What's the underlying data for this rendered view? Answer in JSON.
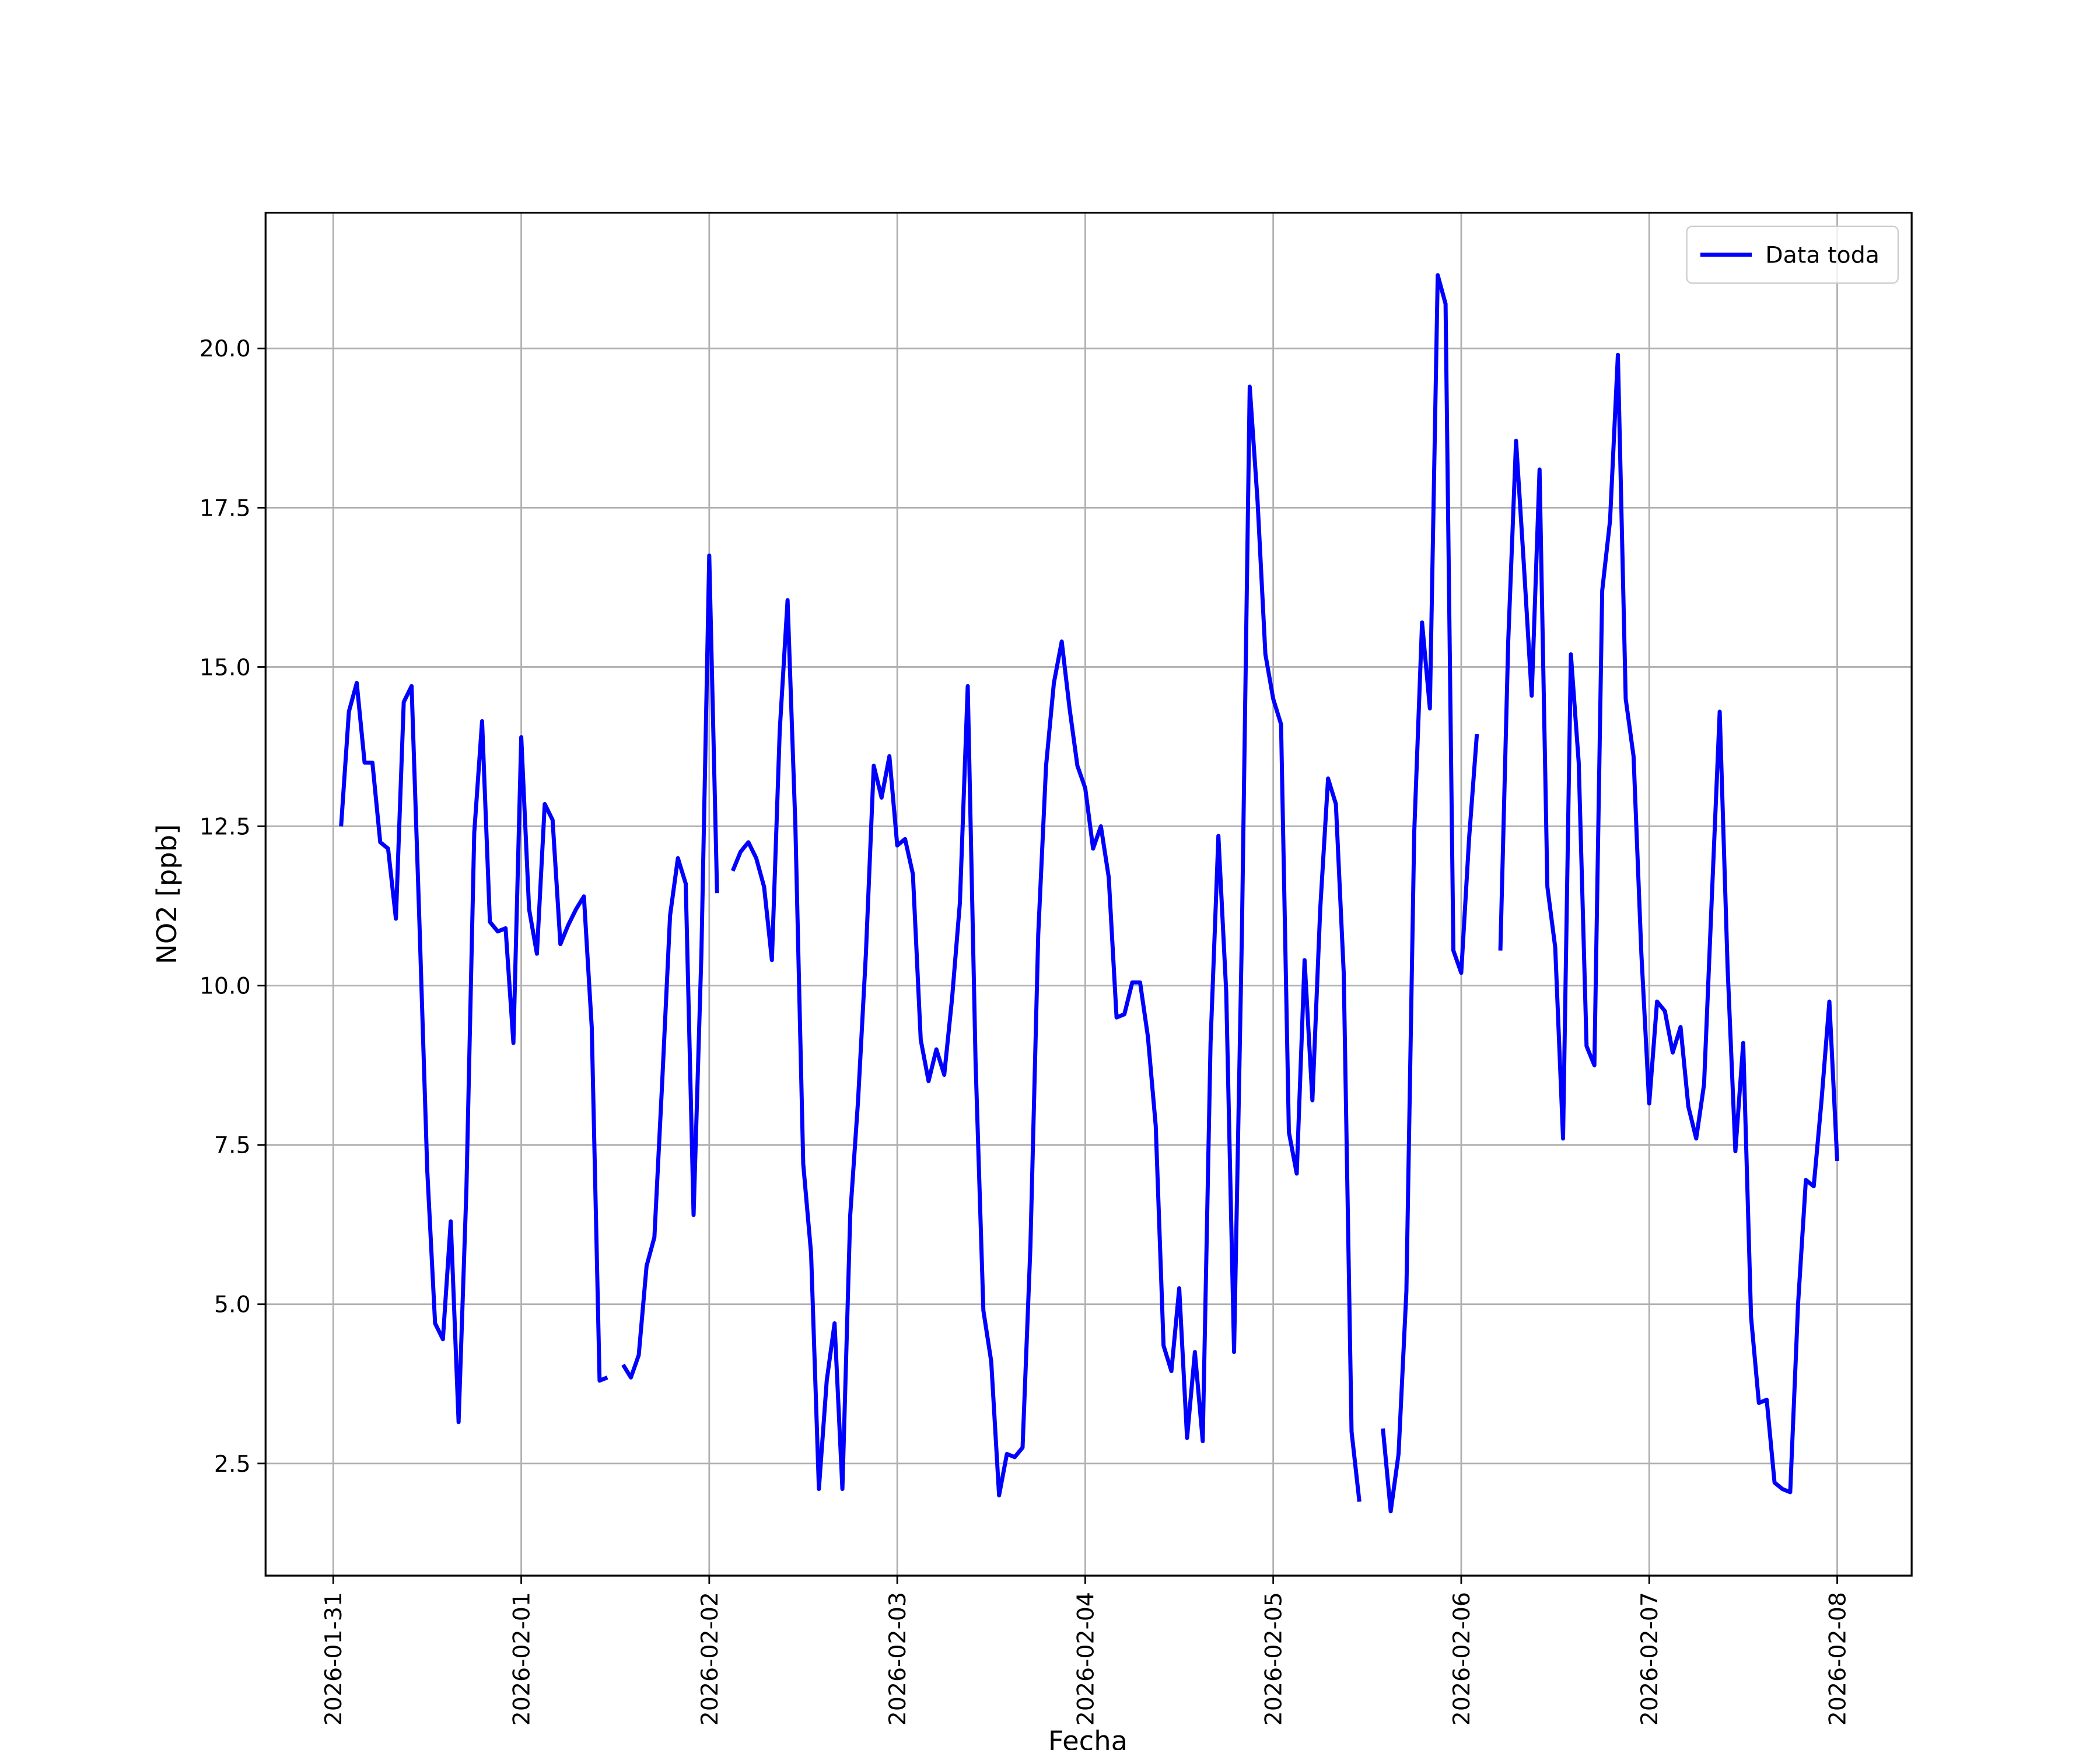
{
  "chart_data": {
    "type": "line",
    "xlabel": "Fecha",
    "ylabel": "NO2 [ppb]",
    "x": [
      0.0417,
      0.0833,
      0.125,
      0.1667,
      0.2083,
      0.25,
      0.2917,
      0.3333,
      0.375,
      0.4167,
      0.4583,
      0.5,
      0.5417,
      0.5833,
      0.625,
      0.6667,
      0.7083,
      0.75,
      0.7917,
      0.8333,
      0.875,
      0.9167,
      0.9583,
      1,
      1.0417,
      1.0833,
      1.125,
      1.1667,
      1.2083,
      1.25,
      1.2917,
      1.3333,
      1.375,
      1.4167,
      1.4583,
      1.5,
      1.5417,
      1.5833,
      1.625,
      1.6667,
      1.7083,
      1.75,
      1.7917,
      1.8333,
      1.875,
      1.9167,
      1.9583,
      2,
      2.0417,
      2.0833,
      2.125,
      2.1667,
      2.2083,
      2.25,
      2.2917,
      2.3333,
      2.375,
      2.4167,
      2.4583,
      2.5,
      2.5417,
      2.5833,
      2.625,
      2.6667,
      2.7083,
      2.75,
      2.7917,
      2.8333,
      2.875,
      2.9167,
      2.9583,
      3,
      3.0417,
      3.0833,
      3.125,
      3.1667,
      3.2083,
      3.25,
      3.2917,
      3.3333,
      3.375,
      3.4167,
      3.4583,
      3.5,
      3.5417,
      3.5833,
      3.625,
      3.6667,
      3.7083,
      3.75,
      3.7917,
      3.8333,
      3.875,
      3.9167,
      3.9583,
      4,
      4.0417,
      4.0833,
      4.125,
      4.1667,
      4.2083,
      4.25,
      4.2917,
      4.3333,
      4.375,
      4.4167,
      4.4583,
      4.5,
      4.5417,
      4.5833,
      4.625,
      4.6667,
      4.7083,
      4.75,
      4.7917,
      4.8333,
      4.875,
      4.9167,
      4.9583,
      5,
      5.0417,
      5.0833,
      5.125,
      5.1667,
      5.2083,
      5.25,
      5.2917,
      5.3333,
      5.375,
      5.4167,
      5.4583,
      5.5,
      5.5417,
      5.5833,
      5.625,
      5.6667,
      5.7083,
      5.75,
      5.7917,
      5.8333,
      5.875,
      5.9167,
      5.9583,
      6,
      6.0417,
      6.0833,
      6.125,
      6.1667,
      6.2083,
      6.25,
      6.2917,
      6.3333,
      6.375,
      6.4167,
      6.4583,
      6.5,
      6.5417,
      6.5833,
      6.625,
      6.6667,
      6.7083,
      6.75,
      6.7917,
      6.8333,
      6.875,
      6.9167,
      6.9583,
      7,
      7.0417,
      7.0833,
      7.125,
      7.1667,
      7.2083,
      7.25,
      7.2917,
      7.3333,
      7.375,
      7.4167,
      7.4583,
      7.5,
      7.5417,
      7.5833,
      7.625,
      7.6667,
      7.7083,
      7.75,
      7.7917,
      7.8333,
      7.875,
      7.9167,
      7.9583,
      8
    ],
    "series": [
      {
        "name": "Data toda",
        "color": "#0000ff",
        "values": [
          12.5,
          14.3,
          14.75,
          13.5,
          13.5,
          12.25,
          12.15,
          11.05,
          14.45,
          14.7,
          11,
          7.1,
          4.7,
          4.45,
          6.3,
          3.15,
          6.8,
          12.4,
          14.15,
          11,
          10.85,
          10.9,
          9.1,
          13.9,
          11.2,
          10.5,
          12.85,
          12.6,
          10.65,
          10.95,
          11.2,
          11.4,
          9.35,
          3.8,
          3.85,
          null,
          4.05,
          3.85,
          4.2,
          5.6,
          6.05,
          8.5,
          11.1,
          12,
          11.6,
          6.4,
          10.5,
          16.75,
          11.45,
          null,
          11.8,
          12.1,
          12.25,
          12,
          11.55,
          10.4,
          14,
          16.05,
          12.5,
          7.2,
          5.8,
          2.1,
          3.8,
          4.7,
          2.1,
          6.4,
          8.2,
          10.5,
          13.45,
          12.95,
          13.6,
          12.2,
          12.3,
          11.75,
          9.15,
          8.5,
          9,
          8.6,
          9.8,
          11.3,
          14.7,
          8.8,
          4.9,
          4.1,
          2,
          2.65,
          2.6,
          2.75,
          5.9,
          10.8,
          13.45,
          14.75,
          15.4,
          14.35,
          13.45,
          13.1,
          12.15,
          12.5,
          11.7,
          9.5,
          9.55,
          10.05,
          10.05,
          9.2,
          7.8,
          4.35,
          3.95,
          5.25,
          2.9,
          4.25,
          2.85,
          9.1,
          12.35,
          9.9,
          4.25,
          10.8,
          19.4,
          17.6,
          15.2,
          14.5,
          14.1,
          7.7,
          7.05,
          10.4,
          8.2,
          11.2,
          13.25,
          12.85,
          10.2,
          3,
          1.9,
          null,
          null,
          3.05,
          1.75,
          2.65,
          5.2,
          12.4,
          15.7,
          14.35,
          21.15,
          20.7,
          10.55,
          10.2,
          12.3,
          13.95,
          null,
          null,
          10.55,
          15.4,
          18.55,
          16.6,
          14.55,
          18.1,
          11.55,
          10.6,
          7.6,
          15.2,
          13.5,
          9.05,
          8.75,
          16.2,
          17.3,
          19.9,
          14.5,
          13.6,
          10.5,
          8.15,
          9.75,
          9.6,
          8.95,
          9.35,
          8.1,
          7.6,
          8.45,
          11.4,
          14.3,
          10.3,
          7.4,
          9.1,
          4.8,
          3.45,
          3.5,
          2.2,
          2.1,
          2.05,
          5,
          6.95,
          6.85,
          8.2,
          9.75,
          7.25
        ]
      }
    ],
    "xlim": [
      -0.36,
      8.396
    ],
    "xticks": [
      {
        "value": 0,
        "label": "2026-01-31"
      },
      {
        "value": 1,
        "label": "2026-02-01"
      },
      {
        "value": 2,
        "label": "2026-02-02"
      },
      {
        "value": 3,
        "label": "2026-02-03"
      },
      {
        "value": 4,
        "label": "2026-02-04"
      },
      {
        "value": 5,
        "label": "2026-02-05"
      },
      {
        "value": 6,
        "label": "2026-02-06"
      },
      {
        "value": 7,
        "label": "2026-02-07"
      },
      {
        "value": 8,
        "label": "2026-02-08"
      }
    ],
    "ylim": [
      0.74,
      22.13
    ],
    "yticks": [
      {
        "value": 2.5,
        "label": "2.5"
      },
      {
        "value": 5,
        "label": "5.0"
      },
      {
        "value": 7.5,
        "label": "7.5"
      },
      {
        "value": 10,
        "label": "10.0"
      },
      {
        "value": 12.5,
        "label": "12.5"
      },
      {
        "value": 15,
        "label": "15.0"
      },
      {
        "value": 17.5,
        "label": "17.5"
      },
      {
        "value": 20,
        "label": "20.0"
      }
    ],
    "grid": true,
    "legend": "upper right"
  }
}
